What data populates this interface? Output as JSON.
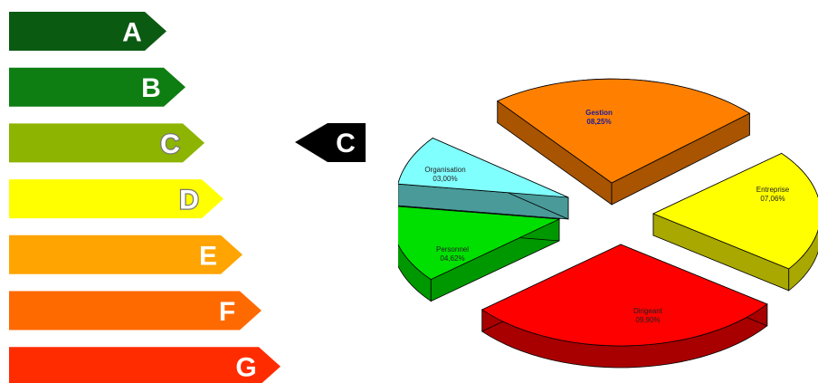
{
  "energy_scale": {
    "grades": [
      {
        "letter": "A",
        "color": "#0b5a12",
        "outline": false
      },
      {
        "letter": "B",
        "color": "#0e7d12",
        "outline": false
      },
      {
        "letter": "C",
        "color": "#8db400",
        "outline": true
      },
      {
        "letter": "D",
        "color": "#ffff00",
        "outline": true
      },
      {
        "letter": "E",
        "color": "#ffa400",
        "outline": false
      },
      {
        "letter": "F",
        "color": "#ff6a00",
        "outline": false
      },
      {
        "letter": "G",
        "color": "#ff2c00",
        "outline": false
      }
    ]
  },
  "indicator": {
    "letter": "C",
    "color": "#000000"
  },
  "chart_data": {
    "type": "pie",
    "style": "3d-exploded",
    "slices": [
      {
        "label": "Gestion",
        "value": 8.25,
        "value_text": "08,25%",
        "color": "#ff8000",
        "side_color": "#a85400",
        "label_color": "#1a1a9a"
      },
      {
        "label": "Entreprise",
        "value": 7.06,
        "value_text": "07,06%",
        "color": "#ffff00",
        "side_color": "#a8a800",
        "label_color": "#222222"
      },
      {
        "label": "Dirigeant",
        "value": 9.9,
        "value_text": "09,90%",
        "color": "#ff0000",
        "side_color": "#a80000",
        "label_color": "#222222"
      },
      {
        "label": "Personnel",
        "value": 4.62,
        "value_text": "04,62%",
        "color": "#00e000",
        "side_color": "#009800",
        "label_color": "#222222"
      },
      {
        "label": "Organisation",
        "value": 3.0,
        "value_text": "03,00%",
        "color": "#80ffff",
        "side_color": "#4a9a9a",
        "label_color": "#222222"
      }
    ],
    "title": "",
    "legend": "none"
  }
}
